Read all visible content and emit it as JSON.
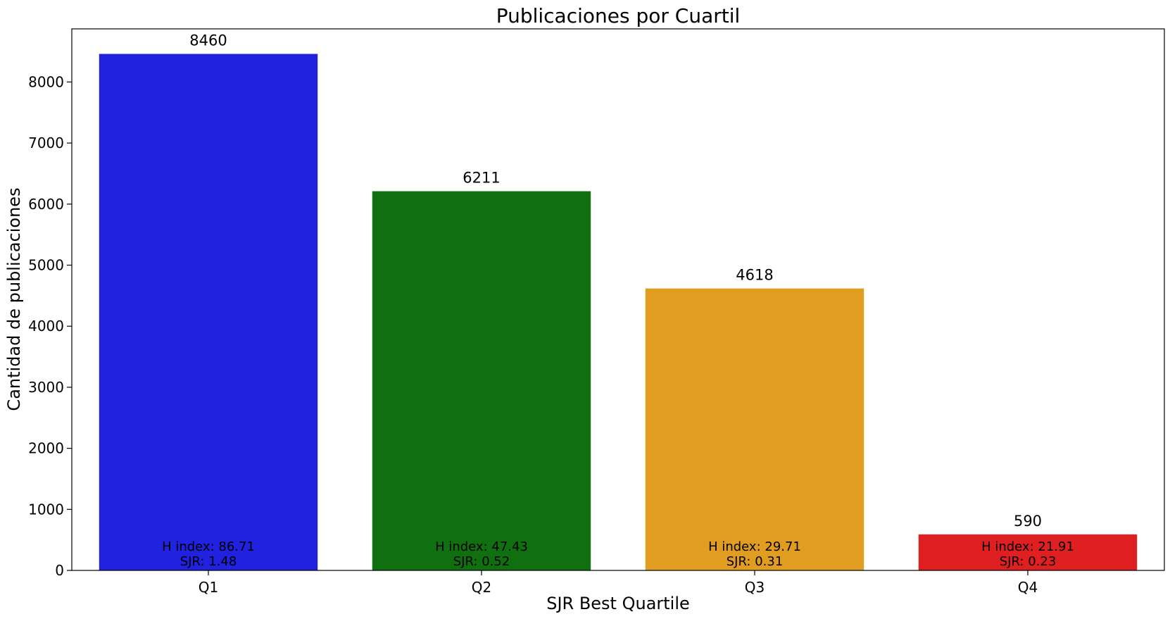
{
  "chart_data": {
    "type": "bar",
    "title": "Publicaciones por Cuartil",
    "xlabel": "SJR Best Quartile",
    "ylabel": "Cantidad de publicaciones",
    "categories": [
      "Q1",
      "Q2",
      "Q3",
      "Q4"
    ],
    "values": [
      8460,
      6211,
      4618,
      590
    ],
    "value_labels": [
      "8460",
      "6211",
      "4618",
      "590"
    ],
    "annotations": [
      {
        "line1": "H index: 86.71",
        "line2": "SJR: 1.48"
      },
      {
        "line1": "H index: 47.43",
        "line2": "SJR: 0.52"
      },
      {
        "line1": "H index: 29.71",
        "line2": "SJR: 0.31"
      },
      {
        "line1": "H index: 21.91",
        "line2": "SJR: 0.23"
      }
    ],
    "colors": [
      "#2022e0",
      "#107010",
      "#e09d20",
      "#e02020"
    ],
    "ylim": [
      0,
      8870
    ],
    "yticks": [
      0,
      1000,
      2000,
      3000,
      4000,
      5000,
      6000,
      7000,
      8000
    ],
    "grid": false,
    "legend": "none"
  }
}
